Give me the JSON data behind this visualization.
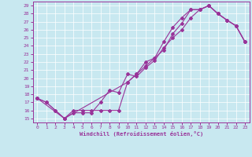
{
  "xlabel": "Windchill (Refroidissement éolien,°C)",
  "xlim": [
    -0.5,
    23.5
  ],
  "ylim": [
    14.5,
    29.5
  ],
  "xticks": [
    0,
    1,
    2,
    3,
    4,
    5,
    6,
    7,
    8,
    9,
    10,
    11,
    12,
    13,
    14,
    15,
    16,
    17,
    18,
    19,
    20,
    21,
    22,
    23
  ],
  "yticks": [
    15,
    16,
    17,
    18,
    19,
    20,
    21,
    22,
    23,
    24,
    25,
    26,
    27,
    28,
    29
  ],
  "line_color": "#993399",
  "bg_color": "#c8e8f0",
  "grid_color": "#ffffff",
  "curve1_x": [
    0,
    1,
    2,
    3,
    4,
    5,
    6,
    7,
    8,
    9,
    10,
    11,
    12,
    13,
    14,
    15,
    16,
    17,
    18,
    19,
    20,
    21,
    22,
    23
  ],
  "curve1_y": [
    17.5,
    17.0,
    16.0,
    15.0,
    15.7,
    15.7,
    15.7,
    17.0,
    18.5,
    18.2,
    20.5,
    20.2,
    21.3,
    22.2,
    23.8,
    25.0,
    26.0,
    27.5,
    28.5,
    29.0,
    28.0,
    27.2,
    26.5,
    24.5
  ],
  "curve2_x": [
    0,
    1,
    2,
    3,
    4,
    5,
    6,
    7,
    8,
    9,
    10,
    11,
    12,
    13,
    14,
    15,
    16,
    17,
    18,
    19,
    20,
    21,
    22,
    23
  ],
  "curve2_y": [
    17.5,
    17.0,
    16.0,
    15.0,
    16.0,
    16.0,
    16.0,
    16.0,
    16.0,
    16.0,
    19.5,
    20.5,
    22.0,
    22.5,
    24.5,
    26.3,
    27.5,
    28.5,
    28.5,
    29.0,
    28.0,
    27.2,
    26.5,
    24.5
  ],
  "curve3_x": [
    0,
    3,
    10,
    11,
    12,
    13,
    14,
    15,
    16,
    17,
    18,
    19,
    20,
    21,
    22,
    23
  ],
  "curve3_y": [
    17.5,
    15.0,
    19.5,
    20.5,
    21.5,
    22.5,
    23.5,
    25.5,
    26.8,
    28.5,
    28.5,
    29.0,
    28.0,
    27.2,
    26.5,
    24.5
  ]
}
